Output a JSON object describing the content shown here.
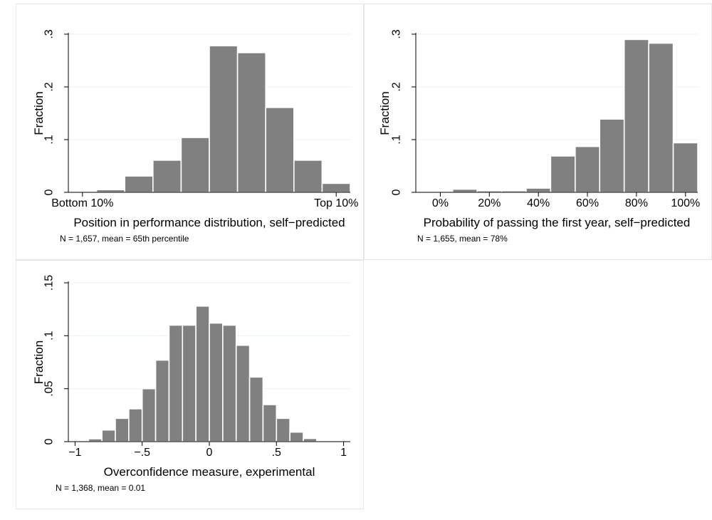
{
  "chart_data": [
    {
      "type": "bar",
      "ylabel": "Fraction",
      "xlabel": "Position in performance distribution, self−predicted",
      "note": "N = 1,657, mean = 65th percentile",
      "ylim": [
        0,
        0.3
      ],
      "yticks": [
        0,
        0.1,
        0.2,
        0.3
      ],
      "ytick_labels": [
        "0",
        ".1",
        ".2",
        ".3"
      ],
      "xlim": [
        0,
        1
      ],
      "xticks": [
        0.05,
        0.95
      ],
      "xtick_labels": [
        "Bottom 10%",
        "Top 10%"
      ],
      "bar_color": "#808080",
      "grid": true,
      "bins": [
        {
          "x0": 0.0,
          "x1": 0.1,
          "value": 0.002
        },
        {
          "x0": 0.1,
          "x1": 0.2,
          "value": 0.005
        },
        {
          "x0": 0.2,
          "x1": 0.3,
          "value": 0.031
        },
        {
          "x0": 0.3,
          "x1": 0.4,
          "value": 0.061
        },
        {
          "x0": 0.4,
          "x1": 0.5,
          "value": 0.104
        },
        {
          "x0": 0.5,
          "x1": 0.6,
          "value": 0.278
        },
        {
          "x0": 0.6,
          "x1": 0.7,
          "value": 0.265
        },
        {
          "x0": 0.7,
          "x1": 0.8,
          "value": 0.161
        },
        {
          "x0": 0.8,
          "x1": 0.9,
          "value": 0.061
        },
        {
          "x0": 0.9,
          "x1": 1.0,
          "value": 0.017
        }
      ]
    },
    {
      "type": "bar",
      "ylabel": "Fraction",
      "xlabel": "Probability of passing the first year, self−predicted",
      "note": "N = 1,655, mean = 78%",
      "ylim": [
        0,
        0.3
      ],
      "yticks": [
        0,
        0.1,
        0.2,
        0.3
      ],
      "ytick_labels": [
        "0",
        ".1",
        ".2",
        ".3"
      ],
      "xlim": [
        -10,
        105
      ],
      "xticks": [
        0,
        20,
        40,
        60,
        80,
        100
      ],
      "xtick_labels": [
        "0%",
        "20%",
        "40%",
        "60%",
        "80%",
        "100%"
      ],
      "bar_color": "#808080",
      "grid": true,
      "bins": [
        {
          "x0": 5,
          "x1": 15,
          "value": 0.006
        },
        {
          "x0": 15,
          "x1": 25,
          "value": 0.003
        },
        {
          "x0": 25,
          "x1": 35,
          "value": 0.003
        },
        {
          "x0": 35,
          "x1": 45,
          "value": 0.008
        },
        {
          "x0": 45,
          "x1": 55,
          "value": 0.069
        },
        {
          "x0": 55,
          "x1": 65,
          "value": 0.087
        },
        {
          "x0": 65,
          "x1": 75,
          "value": 0.139
        },
        {
          "x0": 75,
          "x1": 85,
          "value": 0.29
        },
        {
          "x0": 85,
          "x1": 95,
          "value": 0.283
        },
        {
          "x0": 95,
          "x1": 105,
          "value": 0.094
        }
      ]
    },
    {
      "type": "bar",
      "ylabel": "Fraction",
      "xlabel": "Overconfidence measure, experimental",
      "note": "N = 1,368, mean = 0.01",
      "ylim": [
        0,
        0.15
      ],
      "yticks": [
        0,
        0.05,
        0.1,
        0.15
      ],
      "ytick_labels": [
        "0",
        ".05",
        ".1",
        ".15"
      ],
      "xlim": [
        -1.05,
        1.05
      ],
      "xticks": [
        -1,
        -0.5,
        0,
        0.5,
        1
      ],
      "xtick_labels": [
        "−1",
        "−.5",
        "0",
        ".5",
        "1"
      ],
      "bar_color": "#808080",
      "grid": true,
      "bins": [
        {
          "x0": -1.0,
          "x1": -0.9,
          "value": 0.0007
        },
        {
          "x0": -0.9,
          "x1": -0.8,
          "value": 0.0027
        },
        {
          "x0": -0.8,
          "x1": -0.7,
          "value": 0.011
        },
        {
          "x0": -0.7,
          "x1": -0.6,
          "value": 0.022
        },
        {
          "x0": -0.6,
          "x1": -0.5,
          "value": 0.031
        },
        {
          "x0": -0.5,
          "x1": -0.4,
          "value": 0.05
        },
        {
          "x0": -0.4,
          "x1": -0.3,
          "value": 0.077
        },
        {
          "x0": -0.3,
          "x1": -0.2,
          "value": 0.11
        },
        {
          "x0": -0.2,
          "x1": -0.1,
          "value": 0.11
        },
        {
          "x0": -0.1,
          "x1": 0.0,
          "value": 0.128
        },
        {
          "x0": 0.0,
          "x1": 0.1,
          "value": 0.112
        },
        {
          "x0": 0.1,
          "x1": 0.2,
          "value": 0.11
        },
        {
          "x0": 0.2,
          "x1": 0.3,
          "value": 0.091
        },
        {
          "x0": 0.3,
          "x1": 0.4,
          "value": 0.061
        },
        {
          "x0": 0.4,
          "x1": 0.5,
          "value": 0.035
        },
        {
          "x0": 0.5,
          "x1": 0.6,
          "value": 0.022
        },
        {
          "x0": 0.6,
          "x1": 0.7,
          "value": 0.009
        },
        {
          "x0": 0.7,
          "x1": 0.8,
          "value": 0.003
        },
        {
          "x0": 0.8,
          "x1": 0.9,
          "value": 0.0007
        },
        {
          "x0": 0.9,
          "x1": 1.0,
          "value": 0.0004
        }
      ]
    }
  ]
}
